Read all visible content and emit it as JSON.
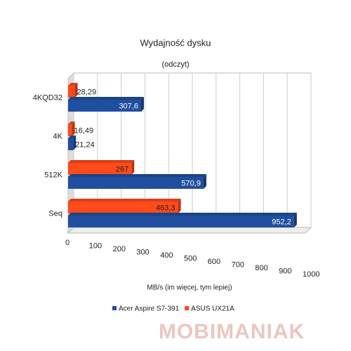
{
  "chart_data": {
    "type": "bar",
    "orientation": "horizontal",
    "title": "Wydajność dysku",
    "subtitle": "(odczyt)",
    "x_label": "MB/s (im więcej, tym lepiej)",
    "categories": [
      "4KQD32",
      "4K",
      "512K",
      "Seq"
    ],
    "series": [
      {
        "name": "ASUS UX21A",
        "color": "#ff4a1c",
        "values": [
          28.29,
          16.49,
          267,
          463.3
        ],
        "value_labels": [
          "28,29",
          "16,49",
          "267",
          "463,3"
        ]
      },
      {
        "name": "Acer Aspire S7-391",
        "color": "#1f4f9e",
        "values": [
          307.6,
          21.24,
          570.9,
          952.2
        ],
        "value_labels": [
          "307,6",
          "21,24",
          "570,9",
          "952,2"
        ]
      }
    ],
    "legend_order": [
      1,
      0
    ],
    "xlim": [
      0,
      1000
    ],
    "xticks": [
      0,
      100,
      200,
      300,
      400,
      500,
      600,
      700,
      800,
      900,
      1000
    ],
    "grid": true,
    "legend": "bottom",
    "watermark": "MOBIMANIAK"
  }
}
